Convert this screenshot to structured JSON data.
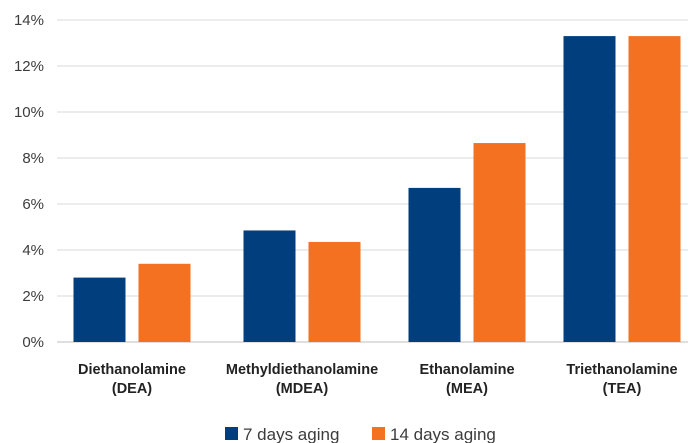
{
  "chart_data": {
    "type": "bar",
    "title": "",
    "xlabel": "",
    "ylabel": "",
    "categories": [
      [
        "Diethanolamine",
        "(DEA)"
      ],
      [
        "Methyldiethanolamine",
        "(MDEA)"
      ],
      [
        "Ethanolamine",
        "(MEA)"
      ],
      [
        "Triethanolamine",
        "(TEA)"
      ]
    ],
    "series": [
      {
        "name": "7 days aging",
        "color": "#003e7e",
        "values": [
          2.8,
          4.85,
          6.7,
          13.3
        ]
      },
      {
        "name": "14 days aging",
        "color": "#f37121",
        "values": [
          3.4,
          4.35,
          8.65,
          13.3
        ]
      }
    ],
    "ylim": [
      0,
      14
    ],
    "yticks": [
      0,
      2,
      4,
      6,
      8,
      10,
      12,
      14
    ],
    "ytick_format": "%",
    "grid": true,
    "legend_position": "bottom-center"
  }
}
